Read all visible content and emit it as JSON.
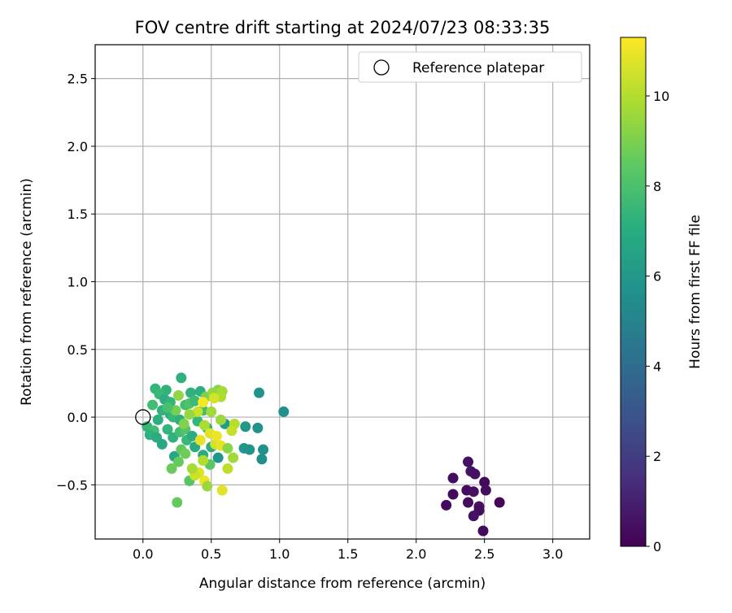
{
  "chart_data": {
    "type": "scatter",
    "title": "FOV centre drift starting at 2024/07/23 08:33:35",
    "xlabel": "Angular distance from reference (arcmin)",
    "ylabel": "Rotation from reference (arcmin)",
    "xlim": [
      -0.35,
      3.27
    ],
    "ylim": [
      -0.9,
      2.75
    ],
    "xticks": [
      0.0,
      0.5,
      1.0,
      1.5,
      2.0,
      2.5,
      3.0
    ],
    "xtick_labels": [
      "0.0",
      "0.5",
      "1.0",
      "1.5",
      "2.0",
      "2.5",
      "3.0"
    ],
    "yticks": [
      -0.5,
      0.0,
      0.5,
      1.0,
      1.5,
      2.0,
      2.5
    ],
    "ytick_labels": [
      "−0.5",
      "0.0",
      "0.5",
      "1.0",
      "1.5",
      "2.0",
      "2.5"
    ],
    "grid": true,
    "legend": {
      "position": "top-right",
      "entries": [
        {
          "label": "Reference platepar",
          "marker": "open-circle"
        }
      ]
    },
    "reference_point": {
      "x": 0.0,
      "y": 0.0
    },
    "colorbar": {
      "label": "Hours from first FF file",
      "colormap": "viridis",
      "range": [
        0,
        11.3
      ],
      "ticks": [
        0,
        2,
        4,
        6,
        8,
        10
      ],
      "tick_labels": [
        "0",
        "2",
        "4",
        "6",
        "8",
        "10"
      ]
    },
    "points": [
      {
        "x": 2.38,
        "y": -0.33,
        "c": 0.5
      },
      {
        "x": 2.27,
        "y": -0.45,
        "c": 0.4
      },
      {
        "x": 2.4,
        "y": -0.4,
        "c": 0.6
      },
      {
        "x": 2.43,
        "y": -0.42,
        "c": 0.5
      },
      {
        "x": 2.5,
        "y": -0.48,
        "c": 0.3
      },
      {
        "x": 2.37,
        "y": -0.54,
        "c": 0.4
      },
      {
        "x": 2.42,
        "y": -0.55,
        "c": 0.5
      },
      {
        "x": 2.51,
        "y": -0.54,
        "c": 0.4
      },
      {
        "x": 2.27,
        "y": -0.57,
        "c": 0.3
      },
      {
        "x": 2.38,
        "y": -0.63,
        "c": 0.4
      },
      {
        "x": 2.61,
        "y": -0.63,
        "c": 0.2
      },
      {
        "x": 2.22,
        "y": -0.65,
        "c": 0.3
      },
      {
        "x": 2.46,
        "y": -0.66,
        "c": 0.5
      },
      {
        "x": 2.46,
        "y": -0.69,
        "c": 0.4
      },
      {
        "x": 2.42,
        "y": -0.73,
        "c": 0.5
      },
      {
        "x": 2.49,
        "y": -0.84,
        "c": 0.3
      },
      {
        "x": 0.85,
        "y": 0.18,
        "c": 5.8
      },
      {
        "x": 1.03,
        "y": 0.04,
        "c": 5.6
      },
      {
        "x": 0.84,
        "y": -0.08,
        "c": 5.7
      },
      {
        "x": 0.75,
        "y": -0.07,
        "c": 5.9
      },
      {
        "x": 0.74,
        "y": -0.23,
        "c": 6.0
      },
      {
        "x": 0.78,
        "y": -0.24,
        "c": 5.8
      },
      {
        "x": 0.88,
        "y": -0.24,
        "c": 5.7
      },
      {
        "x": 0.87,
        "y": -0.31,
        "c": 5.6
      },
      {
        "x": 0.55,
        "y": -0.3,
        "c": 5.9
      },
      {
        "x": 0.6,
        "y": -0.05,
        "c": 6.1
      },
      {
        "x": 0.28,
        "y": 0.29,
        "c": 7.2
      },
      {
        "x": 0.09,
        "y": 0.21,
        "c": 7.5
      },
      {
        "x": 0.17,
        "y": 0.2,
        "c": 7.3
      },
      {
        "x": 0.12,
        "y": 0.17,
        "c": 7.6
      },
      {
        "x": 0.16,
        "y": 0.13,
        "c": 7.0
      },
      {
        "x": 0.2,
        "y": 0.11,
        "c": 7.4
      },
      {
        "x": 0.07,
        "y": 0.09,
        "c": 7.8
      },
      {
        "x": 0.31,
        "y": 0.09,
        "c": 7.9
      },
      {
        "x": 0.35,
        "y": 0.18,
        "c": 7.2
      },
      {
        "x": 0.42,
        "y": 0.19,
        "c": 7.1
      },
      {
        "x": 0.34,
        "y": 0.1,
        "c": 8.1
      },
      {
        "x": 0.38,
        "y": 0.12,
        "c": 7.7
      },
      {
        "x": 0.2,
        "y": 0.02,
        "c": 7.0
      },
      {
        "x": 0.14,
        "y": 0.05,
        "c": 7.3
      },
      {
        "x": 0.22,
        "y": 0.0,
        "c": 7.6
      },
      {
        "x": 0.27,
        "y": -0.02,
        "c": 7.2
      },
      {
        "x": 0.11,
        "y": -0.02,
        "c": 7.1
      },
      {
        "x": 0.03,
        "y": -0.07,
        "c": 7.5
      },
      {
        "x": 0.08,
        "y": -0.1,
        "c": 7.8
      },
      {
        "x": 0.05,
        "y": -0.13,
        "c": 7.2
      },
      {
        "x": 0.1,
        "y": -0.15,
        "c": 7.0
      },
      {
        "x": 0.14,
        "y": -0.2,
        "c": 6.8
      },
      {
        "x": 0.18,
        "y": -0.09,
        "c": 7.4
      },
      {
        "x": 0.22,
        "y": -0.15,
        "c": 7.3
      },
      {
        "x": 0.27,
        "y": -0.11,
        "c": 7.9
      },
      {
        "x": 0.31,
        "y": -0.09,
        "c": 8.2
      },
      {
        "x": 0.32,
        "y": -0.17,
        "c": 7.6
      },
      {
        "x": 0.36,
        "y": -0.14,
        "c": 7.0
      },
      {
        "x": 0.4,
        "y": -0.03,
        "c": 7.5
      },
      {
        "x": 0.44,
        "y": 0.05,
        "c": 7.8
      },
      {
        "x": 0.47,
        "y": -0.08,
        "c": 7.2
      },
      {
        "x": 0.5,
        "y": -0.22,
        "c": 7.1
      },
      {
        "x": 0.38,
        "y": -0.22,
        "c": 6.9
      },
      {
        "x": 0.44,
        "y": -0.28,
        "c": 7.0
      },
      {
        "x": 0.23,
        "y": -0.29,
        "c": 6.7
      },
      {
        "x": 0.28,
        "y": -0.24,
        "c": 8.5
      },
      {
        "x": 0.31,
        "y": -0.27,
        "c": 8.8
      },
      {
        "x": 0.26,
        "y": -0.33,
        "c": 8.6
      },
      {
        "x": 0.21,
        "y": -0.38,
        "c": 8.7
      },
      {
        "x": 0.34,
        "y": -0.47,
        "c": 8.3
      },
      {
        "x": 0.25,
        "y": -0.63,
        "c": 8.6
      },
      {
        "x": 0.49,
        "y": -0.35,
        "c": 8.4
      },
      {
        "x": 0.55,
        "y": 0.2,
        "c": 9.2
      },
      {
        "x": 0.46,
        "y": 0.15,
        "c": 9.0
      },
      {
        "x": 0.51,
        "y": 0.18,
        "c": 9.5
      },
      {
        "x": 0.58,
        "y": 0.19,
        "c": 9.8
      },
      {
        "x": 0.26,
        "y": 0.16,
        "c": 9.4
      },
      {
        "x": 0.57,
        "y": 0.15,
        "c": 9.9
      },
      {
        "x": 0.5,
        "y": 0.04,
        "c": 9.7
      },
      {
        "x": 0.57,
        "y": -0.02,
        "c": 9.6
      },
      {
        "x": 0.45,
        "y": -0.06,
        "c": 9.9
      },
      {
        "x": 0.4,
        "y": 0.04,
        "c": 10.4
      },
      {
        "x": 0.49,
        "y": -0.12,
        "c": 10.8
      },
      {
        "x": 0.53,
        "y": -0.2,
        "c": 10.6
      },
      {
        "x": 0.57,
        "y": -0.21,
        "c": 10.9
      },
      {
        "x": 0.62,
        "y": -0.23,
        "c": 9.3
      },
      {
        "x": 0.66,
        "y": -0.3,
        "c": 9.7
      },
      {
        "x": 0.67,
        "y": -0.05,
        "c": 10.1
      },
      {
        "x": 0.65,
        "y": -0.1,
        "c": 10.3
      },
      {
        "x": 0.41,
        "y": -0.41,
        "c": 10.7
      },
      {
        "x": 0.38,
        "y": -0.43,
        "c": 10.5
      },
      {
        "x": 0.45,
        "y": -0.47,
        "c": 11.0
      },
      {
        "x": 0.47,
        "y": -0.51,
        "c": 9.6
      },
      {
        "x": 0.58,
        "y": -0.54,
        "c": 10.8
      },
      {
        "x": 0.62,
        "y": -0.38,
        "c": 10.2
      },
      {
        "x": 0.44,
        "y": 0.11,
        "c": 11.2
      },
      {
        "x": 0.52,
        "y": 0.14,
        "c": 10.6
      },
      {
        "x": 0.54,
        "y": -0.14,
        "c": 11.0
      },
      {
        "x": 0.42,
        "y": -0.17,
        "c": 10.9
      },
      {
        "x": 0.44,
        "y": -0.32,
        "c": 10.0
      },
      {
        "x": 0.36,
        "y": -0.38,
        "c": 9.8
      },
      {
        "x": 0.3,
        "y": -0.05,
        "c": 9.1
      },
      {
        "x": 0.24,
        "y": 0.05,
        "c": 8.9
      },
      {
        "x": 0.18,
        "y": 0.07,
        "c": 8.0
      },
      {
        "x": 0.34,
        "y": 0.02,
        "c": 9.5
      }
    ]
  }
}
